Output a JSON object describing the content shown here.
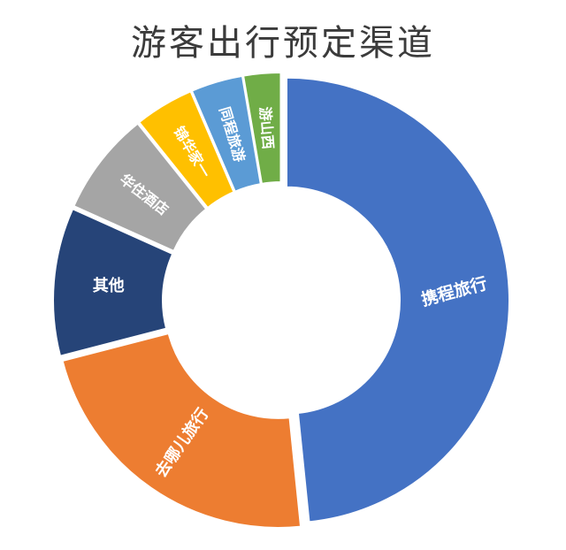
{
  "chart_data": {
    "type": "pie",
    "variant": "donut",
    "title": "游客出行预定渠道",
    "categories": [
      "携程旅行",
      "去哪儿旅行",
      "其他",
      "华住酒店",
      "锦华家一",
      "同程旅游",
      "游山西"
    ],
    "values": [
      45,
      21,
      10,
      7,
      4,
      3.5,
      2.5
    ],
    "colors": [
      "#4472c4",
      "#ed7d31",
      "#264478",
      "#a5a5a5",
      "#ffc000",
      "#5b9bd5",
      "#70ad47"
    ],
    "label_colors": [
      "#ffffff",
      "#ffffff",
      "#ffffff",
      "#ffffff",
      "#ffffff",
      "#ffffff",
      "#ffffff"
    ],
    "legend": "none"
  }
}
